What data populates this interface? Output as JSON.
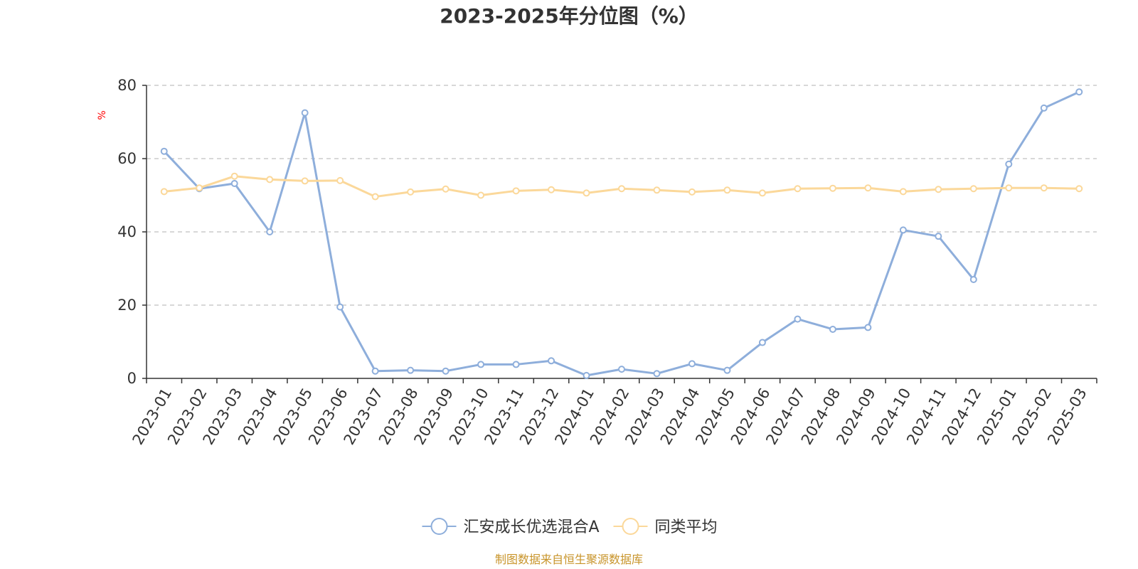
{
  "chart_data": {
    "type": "line",
    "title": "2023-2025年分位图（%）",
    "ylabel": "%",
    "xlabel": "",
    "ylim": [
      0,
      80
    ],
    "yticks": [
      0,
      20,
      40,
      60,
      80
    ],
    "grid": true,
    "legend_position": "bottom-center",
    "categories": [
      "2023-01",
      "2023-02",
      "2023-03",
      "2023-04",
      "2023-05",
      "2023-06",
      "2023-07",
      "2023-08",
      "2023-09",
      "2023-10",
      "2023-11",
      "2023-12",
      "2024-01",
      "2024-02",
      "2024-03",
      "2024-04",
      "2024-05",
      "2024-06",
      "2024-07",
      "2024-08",
      "2024-09",
      "2024-10",
      "2024-11",
      "2024-12",
      "2025-01",
      "2025-02",
      "2025-03"
    ],
    "series": [
      {
        "name": "汇安成长优选混合A",
        "color": "#8eaedb",
        "values": [
          62.0,
          51.8,
          53.2,
          40.0,
          72.5,
          19.5,
          2.0,
          2.2,
          2.0,
          3.8,
          3.8,
          4.8,
          0.8,
          2.5,
          1.3,
          4.0,
          2.2,
          9.8,
          16.2,
          13.4,
          13.9,
          40.5,
          38.8,
          27.0,
          58.5,
          73.8,
          78.2
        ]
      },
      {
        "name": "同类平均",
        "color": "#fbd89a",
        "values": [
          51.0,
          52.0,
          55.2,
          54.3,
          53.9,
          54.0,
          49.6,
          50.9,
          51.7,
          50.0,
          51.2,
          51.5,
          50.6,
          51.8,
          51.4,
          50.9,
          51.4,
          50.6,
          51.8,
          51.9,
          52.0,
          51.0,
          51.6,
          51.8,
          52.0,
          52.0,
          51.8
        ]
      }
    ]
  },
  "colors": {
    "axis": "#333333",
    "grid": "#cccccc",
    "tick_text": "#333333",
    "ylabel": "#ff0000",
    "footer": "#c8942a",
    "title": "#333333"
  },
  "footer": "制图数据来自恒生聚源数据库"
}
